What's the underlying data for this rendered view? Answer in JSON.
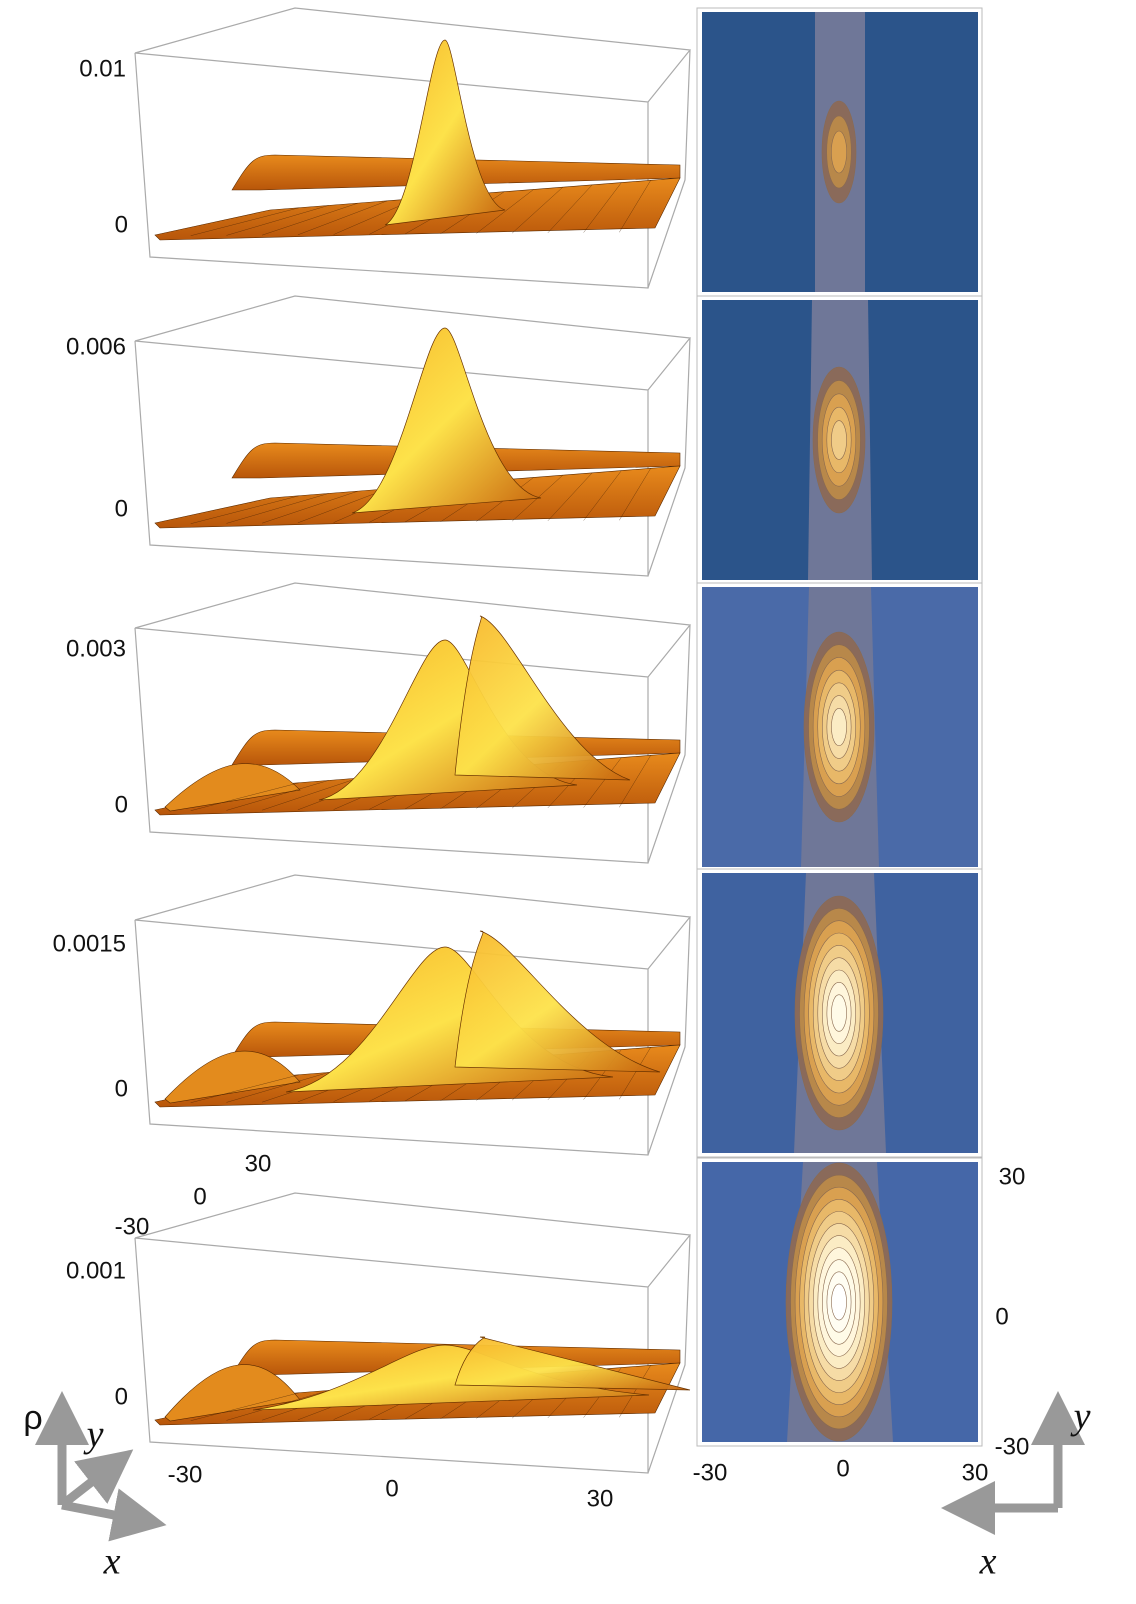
{
  "panels": [
    {
      "z_ticks": [
        "0.01",
        "0"
      ]
    },
    {
      "z_ticks": [
        "0.006",
        "0"
      ]
    },
    {
      "z_ticks": [
        "0.003",
        "0"
      ]
    },
    {
      "z_ticks": [
        "0.0015",
        "0"
      ]
    },
    {
      "z_ticks": [
        "0.001",
        "0"
      ]
    }
  ],
  "surface_axes": {
    "y_ticks": [
      "30",
      "0",
      "-30"
    ],
    "x_ticks": [
      "-30",
      "0",
      "30"
    ]
  },
  "contour_axes": {
    "x_ticks": [
      "-30",
      "0",
      "30"
    ],
    "y_ticks": [
      "30",
      "0",
      "-30"
    ]
  },
  "legend_left": {
    "rho": "ρ",
    "y": "y",
    "x": "x"
  },
  "legend_right": {
    "y": "y",
    "x": "x"
  }
}
